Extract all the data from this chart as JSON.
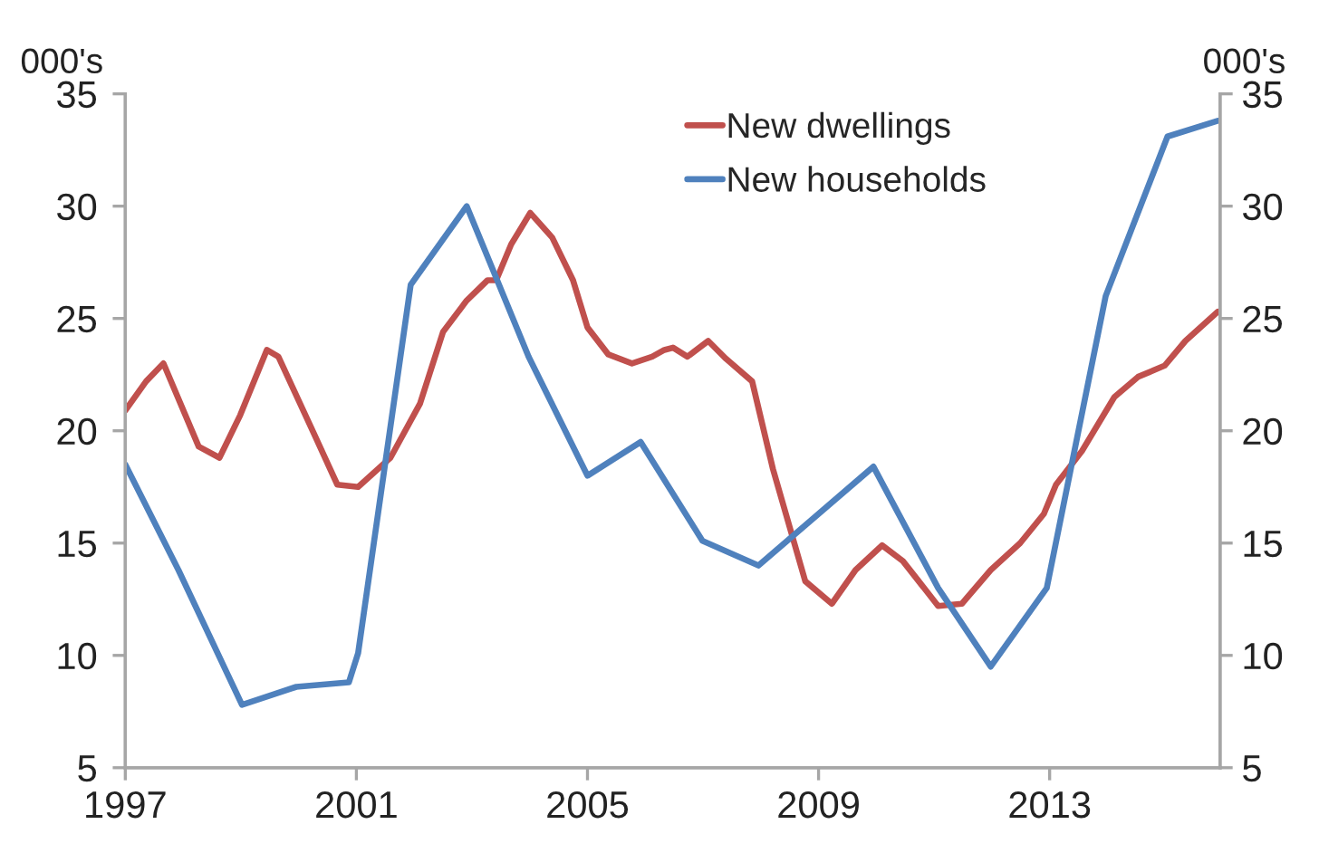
{
  "chart_data": {
    "type": "line",
    "ylabel": "000's",
    "y2label": "000's",
    "xlim": [
      1997,
      2015.95
    ],
    "xticks": [
      1997,
      2001,
      2005,
      2009,
      2013
    ],
    "ylim": [
      5,
      35
    ],
    "yticks": [
      5,
      10,
      15,
      20,
      25,
      30,
      35
    ],
    "y2lim": [
      5,
      35
    ],
    "y2ticks": [
      5,
      10,
      15,
      20,
      25,
      30,
      35
    ],
    "grid": false,
    "legend": "top",
    "line_style": "solid",
    "marker": "none",
    "series": [
      {
        "name": "New dwellings",
        "color": "#c0504d",
        "x": [
          1997.0,
          1997.36,
          1997.66,
          1998.27,
          1998.63,
          1998.99,
          1999.45,
          1999.65,
          2000.26,
          2000.67,
          2001.03,
          2001.59,
          2002.1,
          2002.5,
          2002.91,
          2003.27,
          2003.42,
          2003.68,
          2004.01,
          2004.39,
          2004.75,
          2005.0,
          2005.36,
          2005.77,
          2006.12,
          2006.33,
          2006.48,
          2006.73,
          2007.09,
          2007.4,
          2007.85,
          2008.21,
          2008.77,
          2009.23,
          2009.64,
          2010.1,
          2010.46,
          2011.07,
          2011.48,
          2011.98,
          2012.49,
          2012.9,
          2013.11,
          2013.56,
          2014.12,
          2014.53,
          2014.99,
          2015.35,
          2015.91
        ],
        "values": [
          20.9,
          22.2,
          23.0,
          19.3,
          18.8,
          20.7,
          23.6,
          23.3,
          19.9,
          17.6,
          17.5,
          18.8,
          21.2,
          24.4,
          25.8,
          26.7,
          26.7,
          28.3,
          29.7,
          28.6,
          26.7,
          24.6,
          23.4,
          23.0,
          23.3,
          23.6,
          23.7,
          23.3,
          24.0,
          23.2,
          22.2,
          18.3,
          13.3,
          12.3,
          13.8,
          14.9,
          14.2,
          12.2,
          12.3,
          13.8,
          15.0,
          16.3,
          17.6,
          19.1,
          21.5,
          22.4,
          22.9,
          24.0,
          25.3
        ]
      },
      {
        "name": "New households",
        "color": "#4f81bd",
        "x": [
          1997.0,
          1997.92,
          1999.02,
          1999.96,
          2000.87,
          2001.03,
          2001.94,
          2002.91,
          2003.98,
          2005.0,
          2005.92,
          2006.99,
          2007.96,
          2009.95,
          2011.07,
          2011.98,
          2012.95,
          2013.97,
          2015.04,
          2015.91
        ],
        "values": [
          18.5,
          13.8,
          7.8,
          8.6,
          8.8,
          10.1,
          26.5,
          30.0,
          23.3,
          18.0,
          19.5,
          15.1,
          14.0,
          18.4,
          13.0,
          9.5,
          13.0,
          26.0,
          33.1,
          33.8
        ]
      }
    ]
  }
}
